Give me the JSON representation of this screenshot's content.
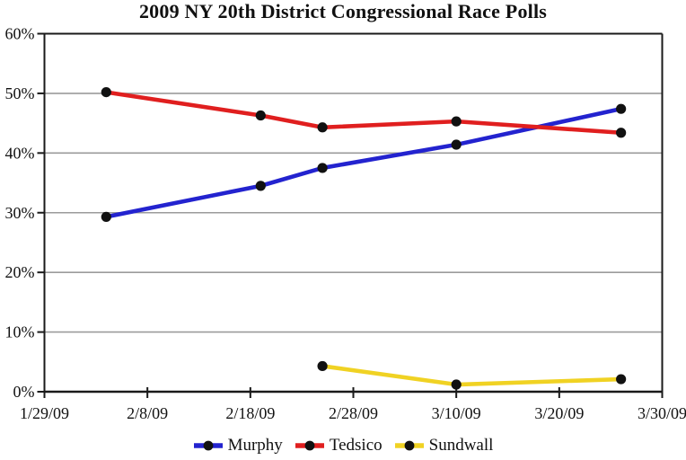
{
  "page": {
    "background": "#ffffff"
  },
  "chart_data": {
    "type": "line",
    "title": "2009 NY 20th District Congressional Race Polls",
    "xlabel": "",
    "ylabel": "",
    "ylim": [
      0,
      60
    ],
    "xlim_days": [
      0,
      60
    ],
    "y_tick_values": [
      0,
      10,
      20,
      30,
      40,
      50,
      60
    ],
    "y_tick_labels": [
      "0%",
      "10%",
      "20%",
      "30%",
      "40%",
      "50%",
      "60%"
    ],
    "x_tick_days": [
      0,
      10,
      20,
      30,
      40,
      50,
      60
    ],
    "x_tick_labels": [
      "1/29/09",
      "2/8/09",
      "2/18/09",
      "2/28/09",
      "3/10/09",
      "3/20/09",
      "3/30/09"
    ],
    "grid": "horizontal",
    "grid_color": "#9b9b9b",
    "border_color": "#1a1a1a",
    "marker_color": "#111111",
    "legend_position": "bottom",
    "poll_dates": [
      "2/4/09",
      "2/19/09",
      "2/25/09",
      "3/10/09",
      "3/26/09"
    ],
    "series": [
      {
        "name": "Murphy",
        "color": "#2323cf",
        "days": [
          6,
          21,
          27,
          40,
          56
        ],
        "dates": [
          "2/4/09",
          "2/19/09",
          "2/25/09",
          "3/10/09",
          "3/26/09"
        ],
        "values": [
          29.3,
          34.5,
          37.5,
          41.4,
          47.4
        ]
      },
      {
        "name": "Tedsico",
        "color": "#e01f1f",
        "days": [
          6,
          21,
          27,
          40,
          56
        ],
        "dates": [
          "2/4/09",
          "2/19/09",
          "2/25/09",
          "3/10/09",
          "3/26/09"
        ],
        "values": [
          50.2,
          46.3,
          44.3,
          45.3,
          43.4
        ]
      },
      {
        "name": "Sundwall",
        "color": "#f0d223",
        "days": [
          27,
          40,
          56
        ],
        "dates": [
          "2/25/09",
          "3/10/09",
          "3/26/09"
        ],
        "values": [
          4.3,
          1.2,
          2.1
        ]
      }
    ]
  }
}
